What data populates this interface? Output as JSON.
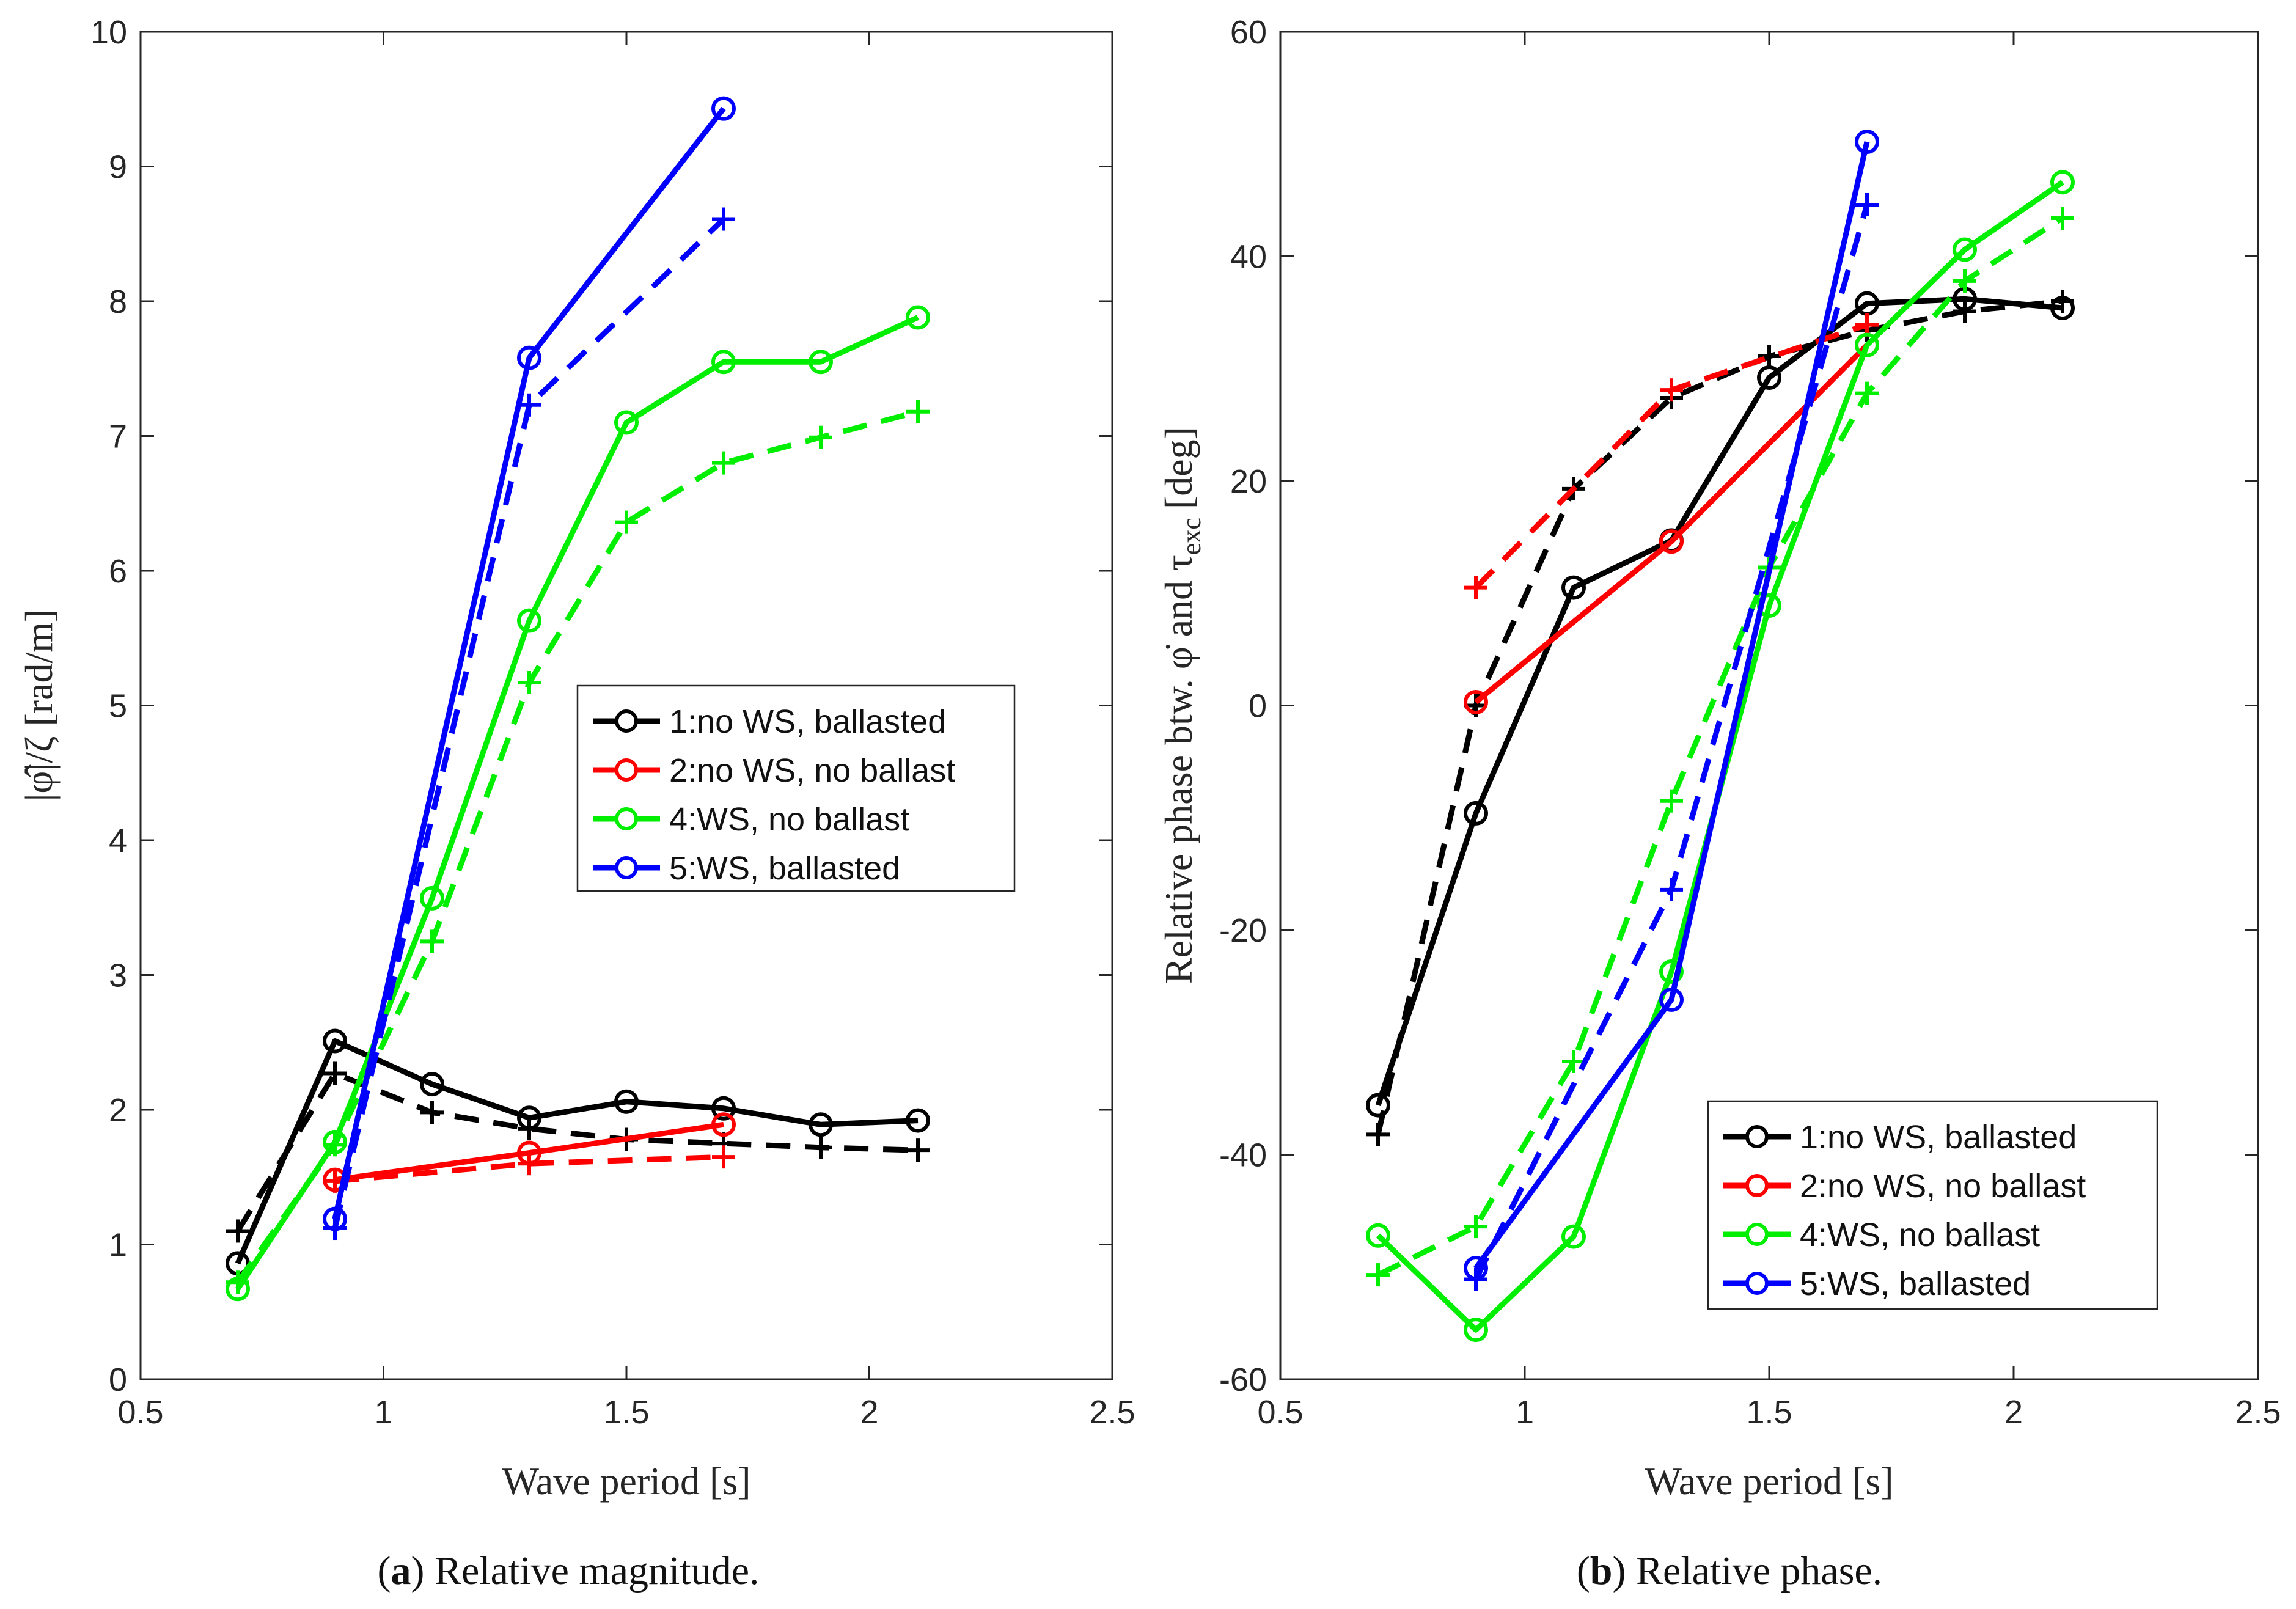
{
  "chart_data": [
    {
      "type": "line",
      "panel": "a",
      "caption_letter": "a",
      "caption_text": "Relative magnitude.",
      "xlabel": "Wave period [s]",
      "ylabel": "|φ̂|/ζ [rad/m]",
      "xlim": [
        0.5,
        2.5
      ],
      "ylim": [
        0,
        10
      ],
      "xticks": [
        0.5,
        1,
        1.5,
        2,
        2.5
      ],
      "xtick_labels": [
        "0.5",
        "1",
        "1.5",
        "2",
        "2.5"
      ],
      "yticks": [
        0,
        1,
        2,
        3,
        4,
        5,
        6,
        7,
        8,
        9,
        10
      ],
      "ytick_labels": [
        "0",
        "1",
        "2",
        "3",
        "4",
        "5",
        "6",
        "7",
        "8",
        "9",
        "10"
      ],
      "legend_position": "center-right",
      "series": [
        {
          "name": "1:no WS, ballasted",
          "color": "#000000",
          "style": "solid",
          "marker": "circle",
          "x": [
            0.7,
            0.9,
            1.1,
            1.3,
            1.5,
            1.7,
            1.9,
            2.1
          ],
          "y": [
            0.86,
            2.51,
            2.19,
            1.94,
            2.06,
            2.01,
            1.89,
            1.92
          ]
        },
        {
          "name": "1 (dashed)",
          "color": "#000000",
          "style": "dashed",
          "marker": "plus",
          "x": [
            0.7,
            0.9,
            1.1,
            1.3,
            1.5,
            1.7,
            1.9,
            2.1
          ],
          "y": [
            1.1,
            2.27,
            1.98,
            1.86,
            1.78,
            1.75,
            1.72,
            1.7
          ]
        },
        {
          "name": "2:no WS, no ballast",
          "color": "#ff0000",
          "style": "solid",
          "marker": "circle",
          "x": [
            0.9,
            1.3,
            1.7
          ],
          "y": [
            1.48,
            1.68,
            1.89
          ]
        },
        {
          "name": "2 (dashed)",
          "color": "#ff0000",
          "style": "dashed",
          "marker": "plus",
          "x": [
            0.9,
            1.3,
            1.7
          ],
          "y": [
            1.47,
            1.6,
            1.65
          ]
        },
        {
          "name": "4:WS, no ballast",
          "color": "#00ee00",
          "style": "solid",
          "marker": "circle",
          "x": [
            0.7,
            0.9,
            1.1,
            1.3,
            1.5,
            1.7,
            1.9,
            2.1
          ],
          "y": [
            0.67,
            1.76,
            3.57,
            5.63,
            7.1,
            7.55,
            7.55,
            7.88
          ]
        },
        {
          "name": "4 (dashed)",
          "color": "#00ee00",
          "style": "dashed",
          "marker": "plus",
          "x": [
            0.7,
            0.9,
            1.1,
            1.3,
            1.5,
            1.7,
            1.9,
            2.1
          ],
          "y": [
            0.72,
            1.74,
            3.25,
            5.17,
            6.36,
            6.8,
            6.99,
            7.18
          ]
        },
        {
          "name": "5:WS, ballasted",
          "color": "#0000ff",
          "style": "solid",
          "marker": "circle",
          "x": [
            0.9,
            1.3,
            1.7
          ],
          "y": [
            1.19,
            7.58,
            9.43
          ]
        },
        {
          "name": "5 (dashed)",
          "color": "#0000ff",
          "style": "dashed",
          "marker": "plus",
          "x": [
            0.9,
            1.3,
            1.7
          ],
          "y": [
            1.12,
            7.23,
            8.61
          ]
        }
      ],
      "legend": [
        "1:no WS, ballasted",
        "2:no WS, no ballast",
        "4:WS, no ballast",
        "5:WS, ballasted"
      ]
    },
    {
      "type": "line",
      "panel": "b",
      "caption_letter": "b",
      "caption_text": "Relative phase.",
      "xlabel": "Wave period [s]",
      "ylabel_main": "Relative phase btw. φ̇ and τ",
      "ylabel_sub": "exc",
      "ylabel_unit": "[deg]",
      "xlim": [
        0.5,
        2.5
      ],
      "ylim": [
        -60,
        60
      ],
      "xticks": [
        0.5,
        1,
        1.5,
        2,
        2.5
      ],
      "xtick_labels": [
        "0.5",
        "1",
        "1.5",
        "2",
        "2.5"
      ],
      "yticks": [
        -60,
        -40,
        -20,
        0,
        20,
        40,
        60
      ],
      "ytick_labels": [
        "-60",
        "-40",
        "-20",
        "0",
        "20",
        "40",
        "60"
      ],
      "legend_position": "bottom-right",
      "series": [
        {
          "name": "1:no WS, ballasted",
          "color": "#000000",
          "style": "solid",
          "marker": "circle",
          "x": [
            0.7,
            0.9,
            1.1,
            1.3,
            1.5,
            1.7,
            1.9,
            2.1
          ],
          "y": [
            -35.6,
            -9.6,
            10.5,
            14.7,
            29.2,
            35.8,
            36.2,
            35.4
          ]
        },
        {
          "name": "1 (dashed)",
          "color": "#000000",
          "style": "dashed",
          "marker": "plus",
          "x": [
            0.7,
            0.9,
            1.1,
            1.3,
            1.5,
            1.7,
            1.9,
            2.1
          ],
          "y": [
            -38.2,
            0.0,
            19.3,
            27.4,
            31.1,
            33.4,
            35.1,
            36.0
          ]
        },
        {
          "name": "2:no WS, no ballast",
          "color": "#ff0000",
          "style": "solid",
          "marker": "circle",
          "x": [
            0.9,
            1.3,
            1.7
          ],
          "y": [
            0.3,
            14.6,
            32.1
          ]
        },
        {
          "name": "2 (dashed)",
          "color": "#ff0000",
          "style": "dashed",
          "marker": "plus",
          "x": [
            0.9,
            1.3,
            1.7
          ],
          "y": [
            10.5,
            28.1,
            33.9
          ]
        },
        {
          "name": "4:WS, no ballast",
          "color": "#00ee00",
          "style": "solid",
          "marker": "circle",
          "x": [
            0.7,
            0.9,
            1.1,
            1.3,
            1.5,
            1.7,
            1.9,
            2.1
          ],
          "y": [
            -47.2,
            -55.6,
            -47.3,
            -23.7,
            8.9,
            32.1,
            40.6,
            46.6
          ]
        },
        {
          "name": "4 (dashed)",
          "color": "#00ee00",
          "style": "dashed",
          "marker": "plus",
          "x": [
            0.7,
            0.9,
            1.1,
            1.3,
            1.5,
            1.7,
            1.9,
            2.1
          ],
          "y": [
            -50.7,
            -46.4,
            -31.7,
            -8.5,
            12.3,
            27.8,
            37.8,
            43.4
          ]
        },
        {
          "name": "5:WS, ballasted",
          "color": "#0000ff",
          "style": "solid",
          "marker": "circle",
          "x": [
            0.9,
            1.3,
            1.7
          ],
          "y": [
            -50.1,
            -26.2,
            50.2
          ]
        },
        {
          "name": "5 (dashed)",
          "color": "#0000ff",
          "style": "dashed",
          "marker": "plus",
          "x": [
            0.9,
            1.3,
            1.7
          ],
          "y": [
            -51.1,
            -16.4,
            44.6
          ]
        }
      ],
      "legend": [
        "1:no WS, ballasted",
        "2:no WS, no ballast",
        "4:WS, no ballast",
        "5:WS, ballasted"
      ]
    }
  ]
}
